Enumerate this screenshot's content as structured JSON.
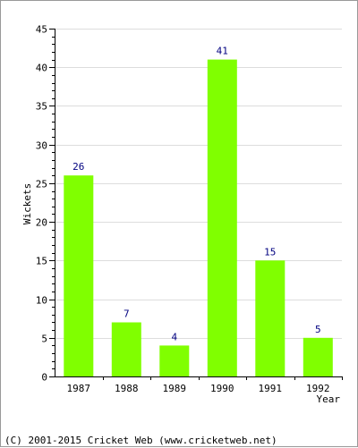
{
  "chart_data": {
    "type": "bar",
    "categories": [
      "1987",
      "1988",
      "1989",
      "1990",
      "1991",
      "1992"
    ],
    "values": [
      26,
      7,
      4,
      41,
      15,
      5
    ],
    "xlabel": "Year",
    "ylabel": "Wickets",
    "ylim": [
      0,
      45
    ],
    "yticks": [
      0,
      5,
      10,
      15,
      20,
      25,
      30,
      35,
      40,
      45
    ],
    "grid": true,
    "bar_color": "#80ff00",
    "grid_color": "#dddddd",
    "data_label_color": "#000080"
  },
  "footer": {
    "copyright": "(C) 2001-2015 Cricket Web (www.cricketweb.net)"
  }
}
